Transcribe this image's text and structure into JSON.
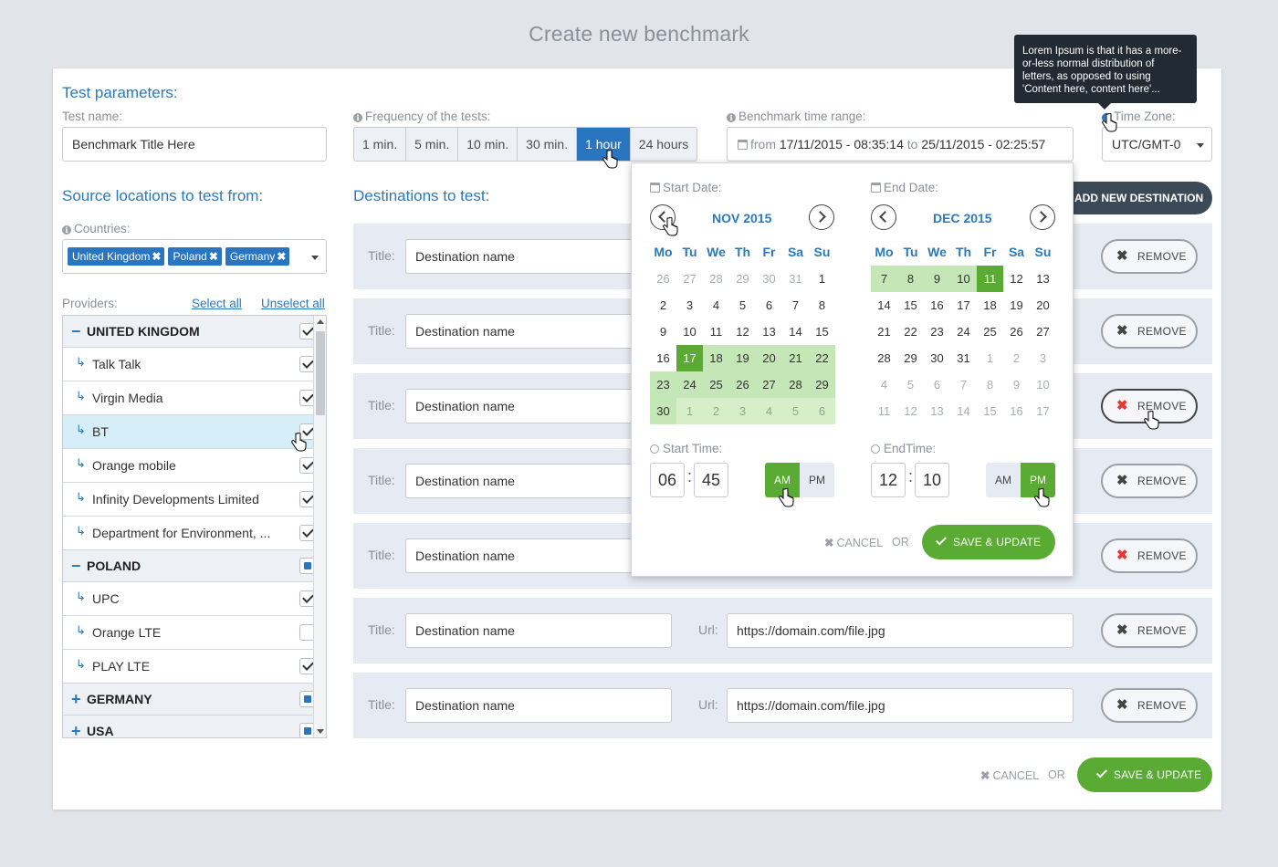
{
  "page_title": "Create new benchmark",
  "test_params": {
    "section_title": "Test parameters:",
    "test_name_label": "Test name:",
    "test_name_value": "Benchmark Title Here",
    "frequency_label": "Frequency of the tests:",
    "frequency_options": [
      "1 min.",
      "5 min.",
      "10 min.",
      "30 min.",
      "1 hour",
      "24 hours"
    ],
    "frequency_selected": "1 hour",
    "time_range_label": "Benchmark time range:",
    "time_range_from_word": "from",
    "time_range_from": "17/11/2015 - 08:35:14",
    "time_range_to_word": "to",
    "time_range_to": "25/11/2015 - 02:25:57",
    "timezone_label": "Time Zone:",
    "timezone_value": "UTC/GMT-0"
  },
  "tooltip": "Lorem Ipsum is that it has a more-or-less normal distribution of letters, as opposed to using 'Content here, content here'...",
  "source": {
    "section_title": "Source locations to test from:",
    "countries_label": "Countries:",
    "countries": [
      "United Kingdom",
      "Poland",
      "Germany"
    ],
    "providers_label": "Providers:",
    "select_all": "Select all",
    "unselect_all": "Unselect all",
    "groups": [
      {
        "name": "UNITED KINGDOM",
        "expanded": true,
        "state": "checked",
        "items": [
          {
            "name": "Talk Talk",
            "checked": true
          },
          {
            "name": "Virgin Media",
            "checked": true
          },
          {
            "name": "BT",
            "checked": true,
            "selected": true
          },
          {
            "name": "Orange mobile",
            "checked": true
          },
          {
            "name": "Infinity Developments Limited",
            "checked": true
          },
          {
            "name": "Department for Environment, ...",
            "checked": true
          }
        ]
      },
      {
        "name": "POLAND",
        "expanded": true,
        "state": "partial",
        "items": [
          {
            "name": "UPC",
            "checked": true
          },
          {
            "name": "Orange LTE",
            "checked": false
          },
          {
            "name": "PLAY LTE",
            "checked": true
          }
        ]
      },
      {
        "name": "GERMANY",
        "expanded": false,
        "state": "partial",
        "items": []
      },
      {
        "name": "USA",
        "expanded": false,
        "state": "partial",
        "items": []
      }
    ]
  },
  "destinations": {
    "section_title": "Destinations to test:",
    "add_button": "ADD NEW DESTINATION",
    "title_label": "Title:",
    "url_label": "Url:",
    "remove_label": "REMOVE",
    "rows": [
      {
        "title": "Destination name",
        "url": "",
        "remove_red": false
      },
      {
        "title": "Destination name",
        "url": "",
        "remove_red": false
      },
      {
        "title": "Destination name",
        "url": "",
        "remove_red": true
      },
      {
        "title": "Destination name",
        "url": "",
        "remove_red": false
      },
      {
        "title": "Destination name",
        "url": "",
        "remove_red": true
      },
      {
        "title": "Destination name",
        "url": "https://domain.com/file.jpg",
        "remove_red": false
      },
      {
        "title": "Destination name",
        "url": "https://domain.com/file.jpg",
        "remove_red": false
      }
    ]
  },
  "datepicker": {
    "start_label": "Start Date:",
    "end_label": "End Date:",
    "start_month": "NOV 2015",
    "end_month": "DEC 2015",
    "weekdays": [
      "Mo",
      "Tu",
      "We",
      "Th",
      "Fr",
      "Sa",
      "Su"
    ],
    "start_days": [
      [
        "26",
        "om"
      ],
      [
        "27",
        "om"
      ],
      [
        "28",
        "om"
      ],
      [
        "29",
        "om"
      ],
      [
        "30",
        "om"
      ],
      [
        "31",
        "om"
      ],
      [
        "1",
        ""
      ],
      [
        "2",
        ""
      ],
      [
        "3",
        ""
      ],
      [
        "4",
        ""
      ],
      [
        "5",
        ""
      ],
      [
        "6",
        ""
      ],
      [
        "7",
        ""
      ],
      [
        "8",
        ""
      ],
      [
        "9",
        ""
      ],
      [
        "10",
        ""
      ],
      [
        "11",
        ""
      ],
      [
        "12",
        ""
      ],
      [
        "13",
        ""
      ],
      [
        "14",
        ""
      ],
      [
        "15",
        ""
      ],
      [
        "16",
        ""
      ],
      [
        "17",
        "sel"
      ],
      [
        "18",
        "inr"
      ],
      [
        "19",
        "inr"
      ],
      [
        "20",
        "inr"
      ],
      [
        "21",
        "inr"
      ],
      [
        "22",
        "inr"
      ],
      [
        "23",
        "inr"
      ],
      [
        "24",
        "inr"
      ],
      [
        "25",
        "inr"
      ],
      [
        "26",
        "inr"
      ],
      [
        "27",
        "inr"
      ],
      [
        "28",
        "inr"
      ],
      [
        "29",
        "inr"
      ],
      [
        "30",
        "inr"
      ],
      [
        "1",
        "inr om"
      ],
      [
        "2",
        "inr om"
      ],
      [
        "3",
        "inr om"
      ],
      [
        "4",
        "inr om"
      ],
      [
        "5",
        "inr om"
      ],
      [
        "6",
        "inr om"
      ]
    ],
    "end_days": [
      [
        "7",
        "inr"
      ],
      [
        "8",
        "inr"
      ],
      [
        "9",
        "inr"
      ],
      [
        "10",
        "inr"
      ],
      [
        "11",
        "sel"
      ],
      [
        "12",
        ""
      ],
      [
        "13",
        ""
      ],
      [
        "14",
        ""
      ],
      [
        "15",
        ""
      ],
      [
        "16",
        ""
      ],
      [
        "17",
        ""
      ],
      [
        "18",
        ""
      ],
      [
        "19",
        ""
      ],
      [
        "20",
        ""
      ],
      [
        "21",
        ""
      ],
      [
        "22",
        ""
      ],
      [
        "23",
        ""
      ],
      [
        "24",
        ""
      ],
      [
        "25",
        ""
      ],
      [
        "26",
        ""
      ],
      [
        "27",
        ""
      ],
      [
        "28",
        ""
      ],
      [
        "29",
        ""
      ],
      [
        "30",
        ""
      ],
      [
        "31",
        ""
      ],
      [
        "1",
        "om"
      ],
      [
        "2",
        "om"
      ],
      [
        "3",
        "om"
      ],
      [
        "4",
        "om"
      ],
      [
        "5",
        "om"
      ],
      [
        "6",
        "om"
      ],
      [
        "7",
        "om"
      ],
      [
        "8",
        "om"
      ],
      [
        "9",
        "om"
      ],
      [
        "10",
        "om"
      ],
      [
        "11",
        "om"
      ],
      [
        "12",
        "om"
      ],
      [
        "13",
        "om"
      ],
      [
        "14",
        "om"
      ],
      [
        "15",
        "om"
      ],
      [
        "16",
        "om"
      ],
      [
        "17",
        "om"
      ]
    ],
    "start_time_label": "Start Time:",
    "end_time_label": "EndTime:",
    "start_hour": "06",
    "start_minute": "45",
    "start_period": "AM",
    "end_hour": "12",
    "end_minute": "10",
    "end_period": "PM",
    "am": "AM",
    "pm": "PM",
    "cancel": "CANCEL",
    "or": "OR",
    "save": "SAVE & UPDATE"
  },
  "footer": {
    "cancel": "CANCEL",
    "or": "OR",
    "save": "SAVE & UPDATE"
  },
  "colors": {
    "accent_blue": "#2a75c0",
    "accent_green": "#5aab34",
    "range_green": "#c5e6b6",
    "danger_red": "#e53935"
  }
}
